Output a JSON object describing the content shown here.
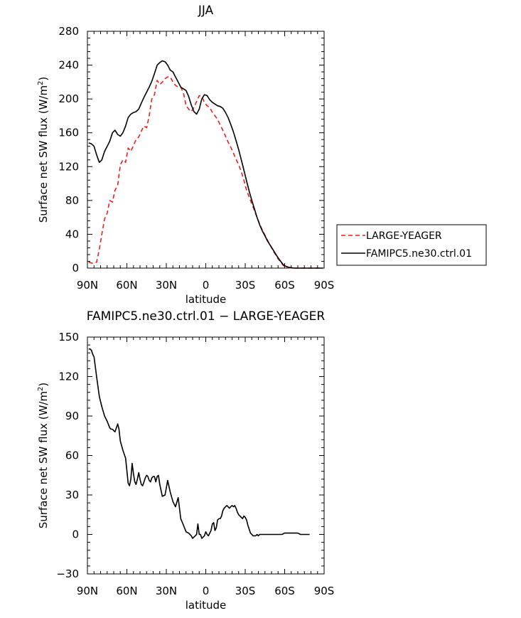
{
  "chart_data": [
    {
      "type": "line",
      "title": "JJA",
      "xlabel": "latitude",
      "ylabel": "Surface net SW flux (W/m²)",
      "ylabel_main": "Surface net SW flux (W/m",
      "ylabel_sup": "2",
      "ylabel_end": ")",
      "xlim": [
        90,
        -90
      ],
      "ylim": [
        0,
        280
      ],
      "x_ticks": [
        90,
        60,
        30,
        0,
        -30,
        -60,
        -90
      ],
      "x_tick_labels": [
        "90N",
        "60N",
        "30N",
        "0",
        "30S",
        "60S",
        "90S"
      ],
      "y_ticks": [
        0,
        40,
        80,
        120,
        160,
        200,
        240,
        280
      ],
      "y_tick_labels": [
        "0",
        "40",
        "80",
        "120",
        "160",
        "200",
        "240",
        "280"
      ],
      "legend": {
        "placement": "right",
        "entries": [
          {
            "label": "LARGE-YEAGER",
            "color": "#e8211c",
            "dash": "6,4"
          },
          {
            "label": "FAMIPC5.ne30.ctrl.01",
            "color": "#000000",
            "dash": ""
          }
        ]
      },
      "series": [
        {
          "name": "LARGE-YEAGER",
          "color": "#e8211c",
          "dash": "6,4",
          "x": [
            89,
            87,
            85,
            83,
            81,
            79,
            77,
            75,
            73,
            71,
            69,
            67,
            65,
            63,
            61,
            59,
            57,
            55,
            53,
            51,
            49,
            47,
            45,
            43,
            41,
            39,
            37,
            35,
            33,
            31,
            29,
            27,
            25,
            23,
            21,
            19,
            17,
            15,
            13,
            11,
            9,
            7,
            5,
            3,
            1,
            -1,
            -3,
            -5,
            -7,
            -9,
            -11,
            -13,
            -15,
            -17,
            -19,
            -21,
            -23,
            -25,
            -27,
            -29,
            -31,
            -33,
            -35,
            -37,
            -39,
            -41,
            -43,
            -45,
            -47,
            -49,
            -51,
            -53,
            -55,
            -57,
            -59,
            -61,
            -63,
            -65,
            -67,
            -69,
            -71,
            -73,
            -75,
            -77,
            -79,
            -81,
            -83,
            -85,
            -87,
            -89
          ],
          "y": [
            7,
            6,
            6,
            7,
            22,
            40,
            58,
            65,
            80,
            78,
            92,
            98,
            122,
            128,
            125,
            142,
            138,
            145,
            152,
            155,
            162,
            168,
            166,
            180,
            200,
            205,
            222,
            217,
            220,
            224,
            226,
            226,
            220,
            216,
            214,
            214,
            207,
            192,
            188,
            185,
            190,
            197,
            204,
            203,
            196,
            192,
            190,
            184,
            180,
            176,
            169,
            163,
            156,
            149,
            143,
            136,
            129,
            122,
            114,
            104,
            92,
            84,
            76,
            68,
            60,
            52,
            45,
            39,
            33,
            27,
            21,
            16,
            11,
            7,
            3,
            1,
            0.5,
            0.2,
            0,
            0,
            0,
            0,
            0,
            0,
            0,
            0,
            0,
            0,
            0,
            0
          ]
        },
        {
          "name": "FAMIPC5.ne30.ctrl.01",
          "color": "#000000",
          "dash": "",
          "x": [
            89,
            87,
            85,
            83,
            81,
            79,
            77,
            75,
            73,
            71,
            69,
            67,
            65,
            63,
            61,
            59,
            57,
            55,
            53,
            51,
            49,
            47,
            45,
            43,
            41,
            39,
            37,
            35,
            33,
            31,
            29,
            27,
            25,
            23,
            21,
            19,
            17,
            15,
            13,
            11,
            9,
            7,
            5,
            3,
            1,
            -1,
            -3,
            -5,
            -7,
            -9,
            -11,
            -13,
            -15,
            -17,
            -19,
            -21,
            -23,
            -25,
            -27,
            -29,
            -31,
            -33,
            -35,
            -37,
            -39,
            -41,
            -43,
            -45,
            -47,
            -49,
            -51,
            -53,
            -55,
            -57,
            -59,
            -61,
            -63,
            -65,
            -67,
            -69,
            -71,
            -73,
            -75,
            -77,
            -79,
            -81,
            -83,
            -85,
            -87,
            -89
          ],
          "y": [
            148,
            147,
            144,
            134,
            125,
            128,
            138,
            144,
            150,
            160,
            163,
            158,
            156,
            160,
            168,
            178,
            182,
            184,
            185,
            188,
            195,
            202,
            208,
            214,
            221,
            230,
            240,
            243,
            245,
            244,
            240,
            234,
            232,
            226,
            220,
            214,
            212,
            210,
            203,
            193,
            185,
            182,
            188,
            200,
            205,
            204,
            199,
            196,
            194,
            192,
            191,
            189,
            184,
            178,
            170,
            161,
            151,
            140,
            128,
            116,
            103,
            91,
            80,
            70,
            60,
            51,
            44,
            38,
            32,
            27,
            22,
            17,
            12,
            8,
            4,
            2,
            1,
            0.5,
            0,
            0,
            0,
            0,
            0,
            0,
            0,
            0,
            0,
            0,
            0,
            0
          ]
        }
      ]
    },
    {
      "type": "line",
      "title": "FAMIPC5.ne30.ctrl.01 − LARGE-YEAGER",
      "xlabel": "latitude",
      "ylabel": "Surface net SW flux (W/m²)",
      "ylabel_main": "Surface net SW flux (W/m",
      "ylabel_sup": "2",
      "ylabel_end": ")",
      "xlim": [
        90,
        -90
      ],
      "ylim": [
        -30,
        150
      ],
      "x_ticks": [
        90,
        60,
        30,
        0,
        -30,
        -60,
        -90
      ],
      "x_tick_labels": [
        "90N",
        "60N",
        "30N",
        "0",
        "30S",
        "60S",
        "90S"
      ],
      "y_ticks": [
        -30,
        0,
        30,
        60,
        90,
        120,
        150
      ],
      "y_tick_labels": [
        "−30",
        "0",
        "30",
        "60",
        "90",
        "120",
        "150"
      ],
      "series": [
        {
          "color": "#000000",
          "dash": "",
          "x": [
            89,
            88,
            87,
            86,
            85,
            83,
            81,
            79,
            77,
            75,
            73,
            72,
            71,
            70,
            69,
            68,
            67,
            66,
            65,
            63,
            61,
            59,
            58,
            57,
            56,
            55,
            54,
            53,
            52,
            51,
            50,
            49,
            48,
            47,
            46,
            45,
            44,
            43,
            42,
            41,
            40,
            39,
            38,
            37,
            36,
            35,
            33,
            31,
            29,
            27,
            25,
            23,
            21,
            19,
            17,
            15,
            13,
            12,
            11,
            10,
            9,
            8,
            7,
            6,
            5,
            4,
            3,
            2,
            1,
            0,
            -1,
            -2,
            -3,
            -4,
            -5,
            -6,
            -7,
            -8,
            -9,
            -10,
            -11,
            -12,
            -13,
            -14,
            -15,
            -16,
            -17,
            -18,
            -19,
            -20,
            -21,
            -22,
            -23,
            -24,
            -25,
            -26,
            -27,
            -28,
            -29,
            -30,
            -31,
            -32,
            -33,
            -34,
            -35,
            -36,
            -37,
            -38,
            -39,
            -40,
            -41,
            -42,
            -43,
            -44,
            -45,
            -46,
            -48,
            -50,
            -52,
            -54,
            -56,
            -58,
            -60,
            -62,
            -64,
            -66,
            -68,
            -70,
            -72,
            -74,
            -76,
            -78,
            -79
          ],
          "y": [
            141,
            141,
            140,
            137,
            135,
            120,
            105,
            97,
            90,
            86,
            81,
            80,
            80,
            79,
            78,
            81,
            84,
            80,
            71,
            64,
            58,
            39,
            37,
            42,
            54,
            46,
            40,
            38,
            42,
            47,
            42,
            38,
            37,
            40,
            43,
            45,
            44,
            41,
            40,
            43,
            44,
            44,
            40,
            44,
            45,
            38,
            29,
            30,
            41,
            32,
            25,
            21,
            28,
            12,
            7,
            2,
            1,
            0,
            -1,
            -3,
            -2,
            -1,
            0,
            8,
            0,
            0,
            -3,
            -2,
            -1,
            2,
            0,
            -1,
            1,
            3,
            8,
            9,
            3,
            5,
            11,
            12,
            12,
            14,
            18,
            20,
            21,
            22,
            21,
            20,
            21,
            22,
            21,
            22,
            20,
            17,
            15,
            14,
            13,
            12,
            14,
            13,
            11,
            7,
            4,
            1,
            0,
            -1,
            -1,
            -1,
            0,
            -1,
            0,
            0,
            0,
            0,
            0,
            0,
            0,
            0,
            0,
            0,
            0,
            0,
            1,
            1,
            1,
            1,
            1,
            1,
            0,
            0,
            0,
            0,
            0
          ]
        }
      ]
    }
  ]
}
